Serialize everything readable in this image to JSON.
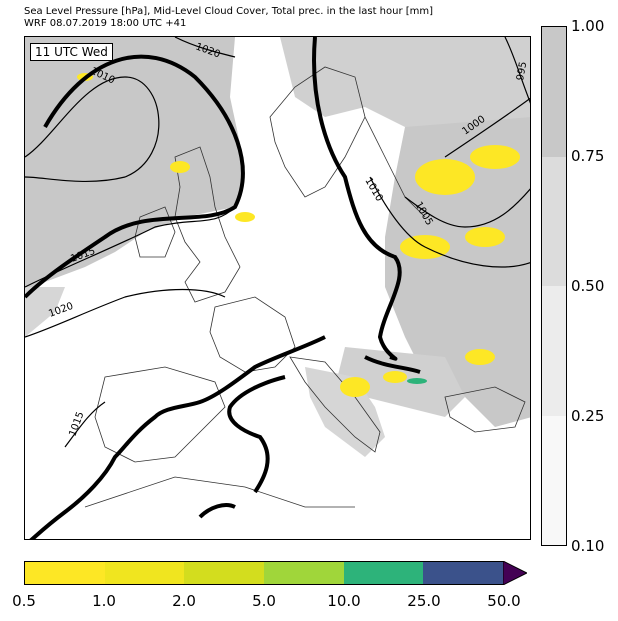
{
  "header": {
    "title_line1": "Sea Level Pressure [hPa], Mid-Level Cloud Cover, Total prec. in the last hour [mm]",
    "title_line2": "WRF 08.07.2019 18:00 UTC +41"
  },
  "map": {
    "time_label": "11 UTC Wed",
    "isobar_labels": [
      "1020",
      "1010",
      "995",
      "1000",
      "1010",
      "1005",
      "1015",
      "1020",
      "1015"
    ]
  },
  "cloud_colorbar": {
    "ticks": [
      "1.00",
      "0.75",
      "0.50",
      "0.25",
      "0.10"
    ],
    "colors": [
      "#c8c8c8",
      "#dcdcdc",
      "#ececec",
      "#f8f8f8"
    ]
  },
  "precip_colorbar": {
    "ticks": [
      "0.5",
      "1.0",
      "2.0",
      "5.0",
      "10.0",
      "25.0",
      "50.0"
    ],
    "colors": [
      "#fde725",
      "#f0e51f",
      "#d3dd1e",
      "#a0d63a",
      "#2db37a",
      "#3b528b",
      "#440154"
    ]
  }
}
